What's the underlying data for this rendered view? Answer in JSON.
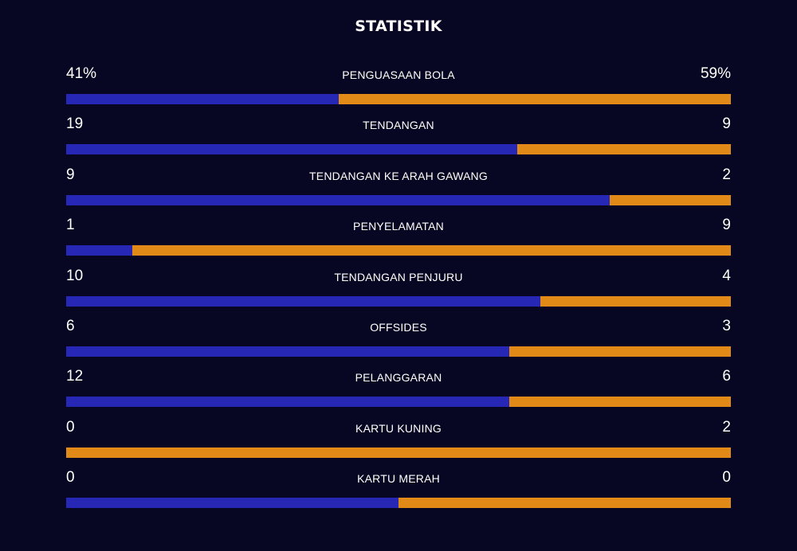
{
  "title": "STATISTIK",
  "colors": {
    "background": "#070723",
    "home": "#2727b5",
    "away": "#e28a17"
  },
  "stats": [
    {
      "label": "PENGUASAAN BOLA",
      "home": "41%",
      "away": "59%",
      "home_share": 0.41
    },
    {
      "label": "TENDANGAN",
      "home": "19",
      "away": "9",
      "home_share": 0.679
    },
    {
      "label": "TENDANGAN KE ARAH GAWANG",
      "home": "9",
      "away": "2",
      "home_share": 0.818
    },
    {
      "label": "PENYELAMATAN",
      "home": "1",
      "away": "9",
      "home_share": 0.1
    },
    {
      "label": "TENDANGAN PENJURU",
      "home": "10",
      "away": "4",
      "home_share": 0.714
    },
    {
      "label": "OFFSIDES",
      "home": "6",
      "away": "3",
      "home_share": 0.667
    },
    {
      "label": "PELANGGARAN",
      "home": "12",
      "away": "6",
      "home_share": 0.667
    },
    {
      "label": "KARTU KUNING",
      "home": "0",
      "away": "2",
      "home_share": 0.0
    },
    {
      "label": "KARTU MERAH",
      "home": "0",
      "away": "0",
      "home_share": 0.5
    }
  ]
}
